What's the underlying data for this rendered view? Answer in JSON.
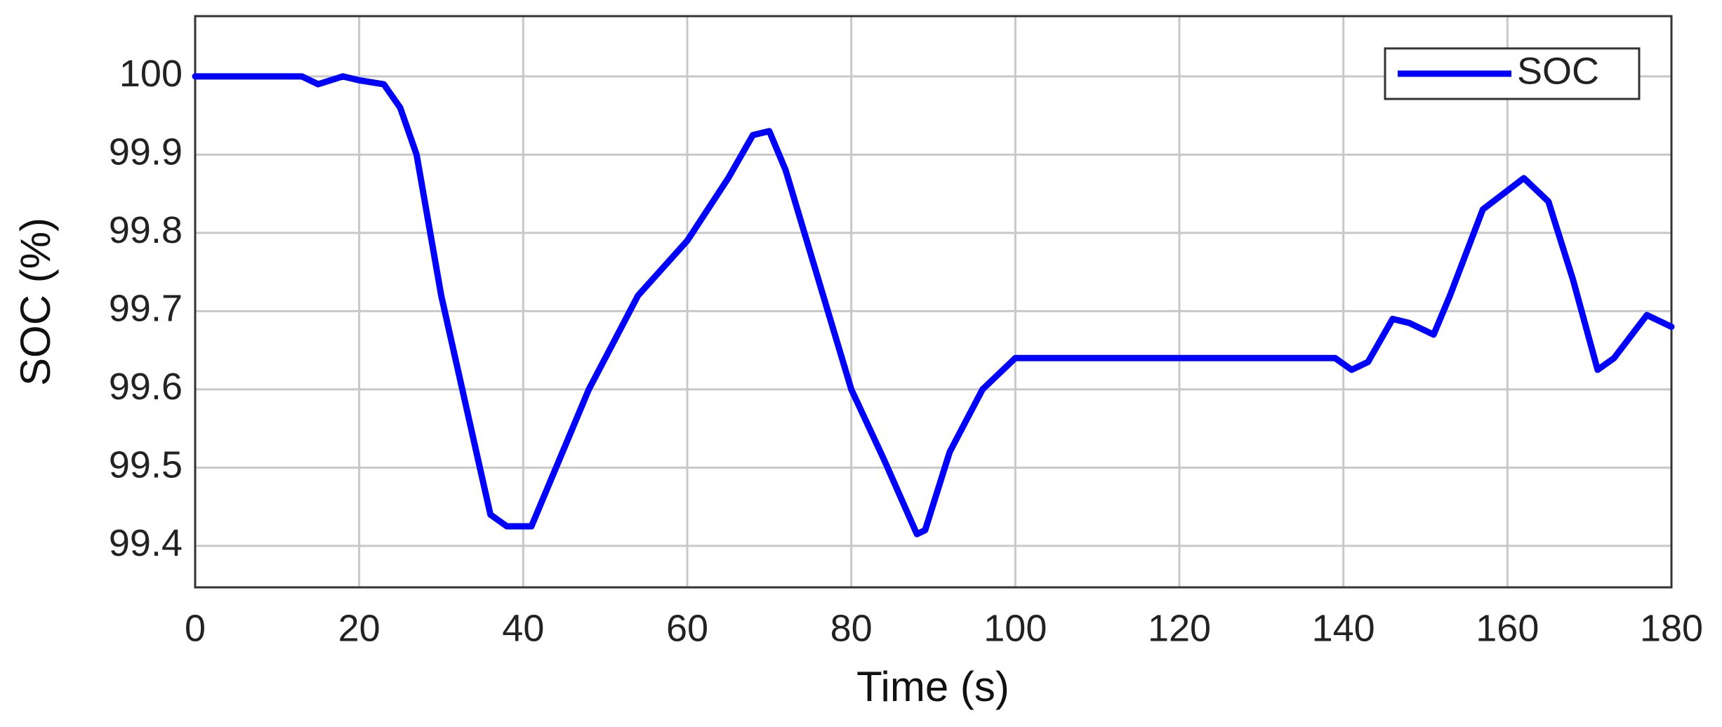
{
  "chart_data": {
    "type": "line",
    "x_label": "Time (s)",
    "y_label": "SOC (%)",
    "x": [
      0,
      13,
      15,
      18,
      20,
      23,
      25,
      27,
      30,
      33,
      36,
      38,
      41,
      44,
      48,
      54,
      60,
      65,
      68,
      70,
      72,
      76,
      80,
      84,
      88,
      89,
      92,
      96,
      100,
      139,
      141,
      143,
      146,
      148,
      151,
      153,
      157,
      162,
      165,
      168,
      171,
      173,
      177,
      180
    ],
    "series": [
      {
        "name": "SOC",
        "color": "#0000ff",
        "values": [
          100,
          100,
          99.99,
          100,
          99.995,
          99.99,
          99.96,
          99.9,
          99.72,
          99.58,
          99.44,
          99.425,
          99.425,
          99.5,
          99.6,
          99.72,
          99.79,
          99.87,
          99.925,
          99.93,
          99.88,
          99.74,
          99.6,
          99.51,
          99.415,
          99.42,
          99.52,
          99.6,
          99.64,
          99.64,
          99.625,
          99.635,
          99.69,
          99.685,
          99.67,
          99.72,
          99.83,
          99.87,
          99.84,
          99.74,
          99.625,
          99.64,
          99.695,
          99.68
        ]
      }
    ],
    "xlim": [
      0,
      180
    ],
    "xticks": [
      0,
      20,
      40,
      60,
      80,
      100,
      120,
      140,
      160,
      180
    ],
    "ylim": [
      99.347,
      100.077
    ],
    "yticks": [
      99.4,
      99.5,
      99.6,
      99.7,
      99.8,
      99.9,
      100
    ],
    "grid": true,
    "legend": "top-right"
  }
}
